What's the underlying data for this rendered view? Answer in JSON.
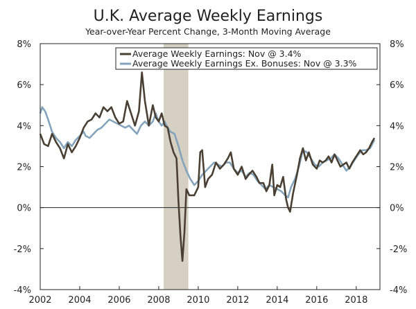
{
  "chart_data": {
    "type": "line",
    "title": "U.K. Average Weekly Earnings",
    "subtitle": "Year-over-Year Percent Change, 3-Month Moving Average",
    "ylim": [
      -4,
      8
    ],
    "xlim": [
      2002,
      2019.2
    ],
    "y_ticks": [
      "-4%",
      "-2%",
      "0%",
      "2%",
      "4%",
      "6%",
      "8%"
    ],
    "y_tick_values": [
      -4,
      -2,
      0,
      2,
      4,
      6,
      8
    ],
    "x_ticks": [
      "2002",
      "2004",
      "2006",
      "2008",
      "2010",
      "2012",
      "2014",
      "2016",
      "2018"
    ],
    "x_tick_values": [
      2002,
      2004,
      2006,
      2008,
      2010,
      2012,
      2014,
      2016,
      2018
    ],
    "recession": [
      2008.25,
      2009.5
    ],
    "legend_position": "top-right",
    "series": [
      {
        "name": "Average Weekly Earnings: Nov @ 3.4%",
        "color": "#4a3f33",
        "points": [
          [
            2002.0,
            3.6
          ],
          [
            2002.2,
            3.1
          ],
          [
            2002.4,
            3.0
          ],
          [
            2002.6,
            3.6
          ],
          [
            2002.8,
            3.2
          ],
          [
            2003.0,
            2.9
          ],
          [
            2003.2,
            2.4
          ],
          [
            2003.4,
            3.1
          ],
          [
            2003.6,
            2.7
          ],
          [
            2003.8,
            3.0
          ],
          [
            2004.0,
            3.4
          ],
          [
            2004.2,
            3.9
          ],
          [
            2004.4,
            4.2
          ],
          [
            2004.6,
            4.3
          ],
          [
            2004.8,
            4.6
          ],
          [
            2005.0,
            4.4
          ],
          [
            2005.2,
            4.9
          ],
          [
            2005.4,
            4.7
          ],
          [
            2005.6,
            4.9
          ],
          [
            2005.8,
            4.4
          ],
          [
            2006.0,
            4.1
          ],
          [
            2006.2,
            4.2
          ],
          [
            2006.4,
            5.2
          ],
          [
            2006.6,
            4.6
          ],
          [
            2006.8,
            4.0
          ],
          [
            2007.0,
            4.7
          ],
          [
            2007.15,
            6.6
          ],
          [
            2007.3,
            5.2
          ],
          [
            2007.5,
            4.0
          ],
          [
            2007.7,
            5.0
          ],
          [
            2007.85,
            4.4
          ],
          [
            2008.0,
            4.2
          ],
          [
            2008.15,
            4.6
          ],
          [
            2008.3,
            4.0
          ],
          [
            2008.45,
            3.9
          ],
          [
            2008.6,
            3.2
          ],
          [
            2008.75,
            2.7
          ],
          [
            2008.9,
            2.4
          ],
          [
            2009.0,
            0.3
          ],
          [
            2009.1,
            -1.4
          ],
          [
            2009.2,
            -2.6
          ],
          [
            2009.3,
            -1.2
          ],
          [
            2009.4,
            0.9
          ],
          [
            2009.55,
            0.6
          ],
          [
            2009.8,
            0.6
          ],
          [
            2010.0,
            1.0
          ],
          [
            2010.1,
            2.7
          ],
          [
            2010.2,
            2.8
          ],
          [
            2010.35,
            1.0
          ],
          [
            2010.5,
            1.4
          ],
          [
            2010.7,
            1.6
          ],
          [
            2010.9,
            2.2
          ],
          [
            2011.1,
            1.9
          ],
          [
            2011.3,
            2.1
          ],
          [
            2011.5,
            2.4
          ],
          [
            2011.65,
            2.7
          ],
          [
            2011.8,
            1.9
          ],
          [
            2012.0,
            1.6
          ],
          [
            2012.2,
            2.0
          ],
          [
            2012.4,
            1.4
          ],
          [
            2012.55,
            1.6
          ],
          [
            2012.75,
            1.8
          ],
          [
            2012.95,
            1.5
          ],
          [
            2013.1,
            1.2
          ],
          [
            2013.3,
            1.2
          ],
          [
            2013.45,
            0.8
          ],
          [
            2013.6,
            1.1
          ],
          [
            2013.75,
            2.1
          ],
          [
            2013.85,
            0.6
          ],
          [
            2014.0,
            1.1
          ],
          [
            2014.15,
            1.0
          ],
          [
            2014.3,
            1.5
          ],
          [
            2014.45,
            0.4
          ],
          [
            2014.55,
            0.0
          ],
          [
            2014.65,
            -0.2
          ],
          [
            2014.8,
            0.7
          ],
          [
            2015.0,
            1.6
          ],
          [
            2015.15,
            2.4
          ],
          [
            2015.3,
            2.9
          ],
          [
            2015.45,
            2.3
          ],
          [
            2015.6,
            2.7
          ],
          [
            2015.8,
            2.1
          ],
          [
            2016.0,
            1.9
          ],
          [
            2016.15,
            2.3
          ],
          [
            2016.3,
            2.2
          ],
          [
            2016.45,
            2.3
          ],
          [
            2016.6,
            2.5
          ],
          [
            2016.75,
            2.2
          ],
          [
            2016.9,
            2.6
          ],
          [
            2017.05,
            2.3
          ],
          [
            2017.2,
            2.0
          ],
          [
            2017.35,
            2.1
          ],
          [
            2017.5,
            2.2
          ],
          [
            2017.65,
            1.9
          ],
          [
            2017.8,
            2.2
          ],
          [
            2018.0,
            2.5
          ],
          [
            2018.2,
            2.8
          ],
          [
            2018.35,
            2.6
          ],
          [
            2018.5,
            2.7
          ],
          [
            2018.65,
            2.9
          ],
          [
            2018.8,
            3.2
          ],
          [
            2018.92,
            3.4
          ]
        ]
      },
      {
        "name": "Average Weekly Earnings Ex. Bonuses: Nov @ 3.3%",
        "color": "#84a4bc",
        "points": [
          [
            2002.0,
            4.6
          ],
          [
            2002.1,
            4.9
          ],
          [
            2002.25,
            4.7
          ],
          [
            2002.4,
            4.3
          ],
          [
            2002.6,
            3.7
          ],
          [
            2002.8,
            3.4
          ],
          [
            2003.0,
            3.2
          ],
          [
            2003.2,
            2.9
          ],
          [
            2003.4,
            3.2
          ],
          [
            2003.6,
            3.0
          ],
          [
            2003.8,
            3.3
          ],
          [
            2004.0,
            3.5
          ],
          [
            2004.2,
            3.7
          ],
          [
            2004.3,
            3.5
          ],
          [
            2004.5,
            3.4
          ],
          [
            2004.7,
            3.6
          ],
          [
            2004.9,
            3.8
          ],
          [
            2005.1,
            3.9
          ],
          [
            2005.3,
            4.1
          ],
          [
            2005.5,
            4.3
          ],
          [
            2005.7,
            4.2
          ],
          [
            2005.9,
            4.1
          ],
          [
            2006.1,
            4.0
          ],
          [
            2006.3,
            3.9
          ],
          [
            2006.5,
            4.0
          ],
          [
            2006.7,
            3.8
          ],
          [
            2006.9,
            3.6
          ],
          [
            2007.1,
            4.0
          ],
          [
            2007.3,
            4.2
          ],
          [
            2007.5,
            4.0
          ],
          [
            2007.7,
            4.2
          ],
          [
            2007.85,
            4.6
          ],
          [
            2008.0,
            4.2
          ],
          [
            2008.15,
            4.0
          ],
          [
            2008.3,
            4.2
          ],
          [
            2008.45,
            3.9
          ],
          [
            2008.6,
            3.7
          ],
          [
            2008.8,
            3.6
          ],
          [
            2009.0,
            3.0
          ],
          [
            2009.2,
            2.3
          ],
          [
            2009.4,
            1.8
          ],
          [
            2009.6,
            1.4
          ],
          [
            2009.8,
            1.1
          ],
          [
            2010.0,
            1.3
          ],
          [
            2010.2,
            1.6
          ],
          [
            2010.4,
            1.8
          ],
          [
            2010.6,
            2.0
          ],
          [
            2010.8,
            2.2
          ],
          [
            2011.0,
            2.1
          ],
          [
            2011.2,
            2.0
          ],
          [
            2011.4,
            2.2
          ],
          [
            2011.6,
            2.2
          ],
          [
            2011.8,
            1.9
          ],
          [
            2012.0,
            1.7
          ],
          [
            2012.2,
            1.8
          ],
          [
            2012.4,
            1.5
          ],
          [
            2012.6,
            1.7
          ],
          [
            2012.8,
            1.6
          ],
          [
            2013.0,
            1.3
          ],
          [
            2013.2,
            1.1
          ],
          [
            2013.4,
            0.9
          ],
          [
            2013.6,
            1.1
          ],
          [
            2013.8,
            1.0
          ],
          [
            2014.0,
            0.9
          ],
          [
            2014.2,
            0.8
          ],
          [
            2014.4,
            0.6
          ],
          [
            2014.55,
            0.5
          ],
          [
            2014.7,
            1.0
          ],
          [
            2014.9,
            1.4
          ],
          [
            2015.1,
            2.0
          ],
          [
            2015.3,
            2.8
          ],
          [
            2015.5,
            2.7
          ],
          [
            2015.7,
            2.4
          ],
          [
            2015.9,
            2.1
          ],
          [
            2016.1,
            2.0
          ],
          [
            2016.3,
            2.2
          ],
          [
            2016.5,
            2.3
          ],
          [
            2016.7,
            2.4
          ],
          [
            2016.9,
            2.6
          ],
          [
            2017.1,
            2.4
          ],
          [
            2017.3,
            2.1
          ],
          [
            2017.5,
            1.8
          ],
          [
            2017.7,
            2.0
          ],
          [
            2017.9,
            2.3
          ],
          [
            2018.1,
            2.6
          ],
          [
            2018.3,
            2.8
          ],
          [
            2018.5,
            2.8
          ],
          [
            2018.7,
            2.9
          ],
          [
            2018.92,
            3.3
          ]
        ]
      }
    ]
  }
}
